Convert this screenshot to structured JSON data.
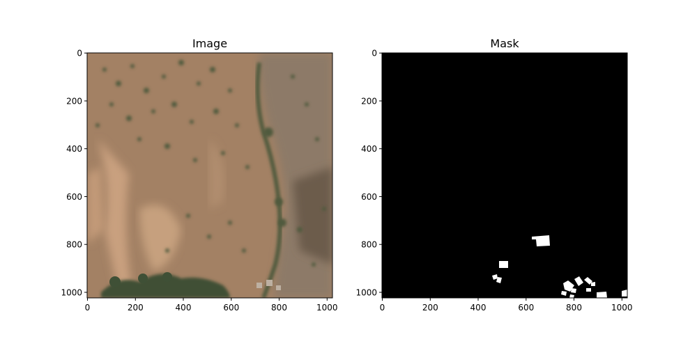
{
  "panels": [
    {
      "title": "Image",
      "xticks": [
        "0",
        "200",
        "400",
        "600",
        "800",
        "1000"
      ],
      "yticks": [
        "0",
        "200",
        "400",
        "600",
        "800",
        "1000"
      ]
    },
    {
      "title": "Mask",
      "xticks": [
        "0",
        "200",
        "400",
        "600",
        "800",
        "1000"
      ],
      "yticks": [
        "0",
        "200",
        "400",
        "600",
        "800",
        "1000"
      ]
    }
  ],
  "colors": {
    "terrain_base": "#a38164",
    "terrain_light": "#c9a07f",
    "terrain_rocky": "#8b7a6a",
    "vegetation": "#4f5a3c",
    "mask_background": "#000000",
    "mask_foreground": "#ffffff"
  }
}
